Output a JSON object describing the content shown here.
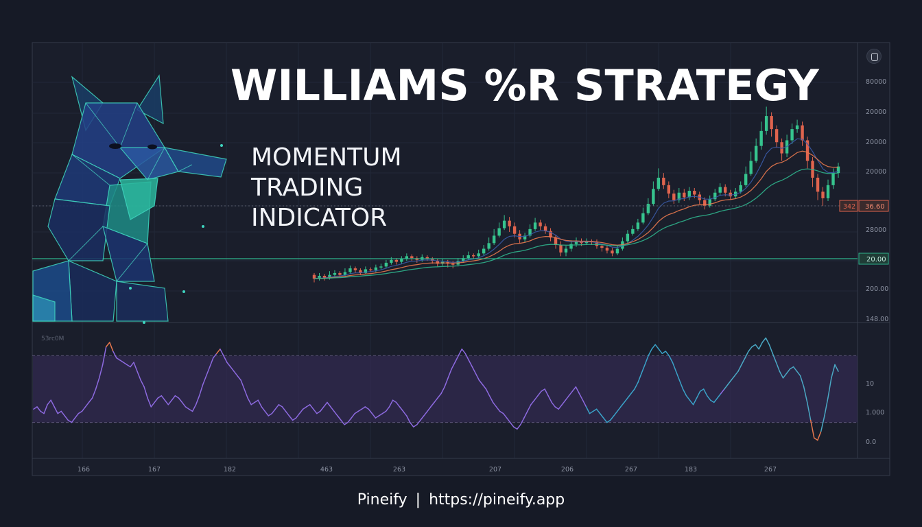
{
  "title": "WILLIAMS %R STRATEGY",
  "subtitle_lines": [
    "MOMENTUM",
    "TRADING",
    "INDICATOR"
  ],
  "footer": {
    "brand": "Pineify",
    "separator": "|",
    "url": "https://pineify.app"
  },
  "colors": {
    "bg": "#161a26",
    "panel": "#1a1e2b",
    "up": "#36c48e",
    "down": "#e0644e",
    "ema_fast": "#e8784e",
    "ema_slow": "#2fb38c",
    "ema_trend": "#3a5ba8",
    "osc": "#8d6ae0",
    "osc_band": "#3a2e5c",
    "teal_line": "#2fb38c",
    "red_line": "#e0644e"
  },
  "chart_data": [
    {
      "type": "candlestick",
      "panel": "price",
      "price_axis_ticks": [
        "80000",
        "20000",
        "20000",
        "20000",
        "28000",
        "200.00",
        "148.00"
      ],
      "price_scale_note": "tick labels are printed as shown; positions approximate",
      "level_markers": [
        {
          "label_left": "342",
          "label_right": "36.60",
          "color": "#e0644e"
        },
        {
          "label": "20.00",
          "color": "#2fb38c"
        }
      ],
      "x_ticks": [
        "166",
        "167",
        "182",
        "463",
        "263",
        "207",
        "206",
        "267",
        "183",
        "267"
      ],
      "ylim": [
        148,
        380
      ],
      "candles": [
        [
          196,
          192,
          198,
          188
        ],
        [
          192,
          195,
          198,
          190
        ],
        [
          195,
          193,
          197,
          190
        ],
        [
          193,
          196,
          200,
          191
        ],
        [
          196,
          198,
          201,
          194
        ],
        [
          198,
          196,
          200,
          194
        ],
        [
          196,
          199,
          203,
          195
        ],
        [
          199,
          203,
          206,
          197
        ],
        [
          203,
          201,
          205,
          198
        ],
        [
          201,
          198,
          203,
          196
        ],
        [
          198,
          202,
          205,
          197
        ],
        [
          202,
          201,
          204,
          199
        ],
        [
          201,
          204,
          207,
          199
        ],
        [
          204,
          205,
          208,
          202
        ],
        [
          205,
          209,
          212,
          203
        ],
        [
          209,
          212,
          215,
          207
        ],
        [
          212,
          210,
          214,
          207
        ],
        [
          210,
          213,
          216,
          208
        ],
        [
          213,
          216,
          219,
          211
        ],
        [
          216,
          214,
          218,
          211
        ],
        [
          214,
          212,
          216,
          209
        ],
        [
          212,
          215,
          218,
          210
        ],
        [
          215,
          213,
          217,
          211
        ],
        [
          213,
          211,
          215,
          208
        ],
        [
          211,
          208,
          213,
          205
        ],
        [
          208,
          210,
          213,
          206
        ],
        [
          210,
          208,
          212,
          204
        ],
        [
          208,
          207,
          211,
          203
        ],
        [
          207,
          211,
          214,
          205
        ],
        [
          211,
          214,
          217,
          209
        ],
        [
          214,
          217,
          221,
          212
        ],
        [
          217,
          216,
          219,
          213
        ],
        [
          216,
          219,
          223,
          214
        ],
        [
          219,
          224,
          228,
          217
        ],
        [
          224,
          230,
          236,
          222
        ],
        [
          230,
          238,
          245,
          228
        ],
        [
          238,
          246,
          252,
          236
        ],
        [
          246,
          254,
          260,
          244
        ],
        [
          254,
          248,
          258,
          242
        ],
        [
          248,
          240,
          252,
          236
        ],
        [
          240,
          234,
          244,
          230
        ],
        [
          234,
          238,
          241,
          231
        ],
        [
          238,
          245,
          250,
          236
        ],
        [
          245,
          252,
          257,
          243
        ],
        [
          252,
          248,
          255,
          244
        ],
        [
          248,
          243,
          251,
          240
        ],
        [
          243,
          236,
          246,
          232
        ],
        [
          236,
          228,
          239,
          224
        ],
        [
          228,
          220,
          232,
          216
        ],
        [
          220,
          224,
          227,
          216
        ],
        [
          224,
          229,
          233,
          221
        ],
        [
          229,
          232,
          236,
          226
        ],
        [
          232,
          230,
          235,
          227
        ],
        [
          230,
          232,
          235,
          228
        ],
        [
          232,
          231,
          234,
          228
        ],
        [
          231,
          227,
          234,
          224
        ],
        [
          227,
          225,
          229,
          221
        ],
        [
          225,
          222,
          228,
          219
        ],
        [
          222,
          219,
          225,
          216
        ],
        [
          219,
          224,
          227,
          217
        ],
        [
          224,
          232,
          236,
          222
        ],
        [
          232,
          240,
          244,
          230
        ],
        [
          240,
          245,
          249,
          238
        ],
        [
          245,
          252,
          256,
          243
        ],
        [
          252,
          262,
          268,
          250
        ],
        [
          262,
          272,
          278,
          260
        ],
        [
          272,
          288,
          296,
          270
        ],
        [
          288,
          300,
          310,
          286
        ],
        [
          300,
          292,
          305,
          288
        ],
        [
          292,
          283,
          296,
          278
        ],
        [
          283,
          276,
          287,
          272
        ],
        [
          276,
          284,
          289,
          273
        ],
        [
          284,
          279,
          288,
          275
        ],
        [
          279,
          286,
          290,
          276
        ],
        [
          286,
          282,
          289,
          278
        ],
        [
          282,
          276,
          285,
          272
        ],
        [
          276,
          270,
          279,
          266
        ],
        [
          270,
          277,
          281,
          268
        ],
        [
          277,
          284,
          288,
          275
        ],
        [
          284,
          290,
          294,
          281
        ],
        [
          290,
          284,
          293,
          280
        ],
        [
          284,
          280,
          287,
          277
        ],
        [
          280,
          285,
          289,
          278
        ],
        [
          285,
          292,
          296,
          283
        ],
        [
          292,
          304,
          312,
          290
        ],
        [
          304,
          318,
          328,
          302
        ],
        [
          318,
          334,
          342,
          316
        ],
        [
          334,
          350,
          360,
          330
        ],
        [
          350,
          366,
          376,
          346
        ],
        [
          366,
          352,
          370,
          344
        ],
        [
          352,
          338,
          356,
          332
        ],
        [
          338,
          326,
          342,
          318
        ],
        [
          326,
          340,
          346,
          322
        ],
        [
          340,
          352,
          358,
          336
        ],
        [
          352,
          356,
          362,
          348
        ],
        [
          356,
          340,
          360,
          334
        ],
        [
          340,
          318,
          344,
          310
        ],
        [
          318,
          300,
          322,
          290
        ],
        [
          300,
          285,
          304,
          276
        ],
        [
          285,
          278,
          290,
          270
        ],
        [
          278,
          292,
          298,
          275
        ],
        [
          292,
          305,
          310,
          288
        ],
        [
          305,
          312,
          316,
          300
        ]
      ],
      "ema_fast_label": "",
      "ema_slow_label": ""
    },
    {
      "type": "line",
      "panel": "oscillator",
      "panel_label": "53rc0M",
      "yaxis_ticks": [
        "10",
        "1.000",
        "0.0"
      ],
      "upper_band": -20,
      "lower_band": -80,
      "ylim": [
        -100,
        0
      ],
      "values": [
        -68,
        -66,
        -70,
        -72,
        -64,
        -60,
        -66,
        -72,
        -70,
        -74,
        -78,
        -80,
        -76,
        -72,
        -70,
        -66,
        -62,
        -58,
        -50,
        -40,
        -28,
        -12,
        -8,
        -16,
        -22,
        -24,
        -26,
        -28,
        -30,
        -26,
        -34,
        -42,
        -48,
        -58,
        -66,
        -62,
        -58,
        -56,
        -60,
        -64,
        -60,
        -56,
        -58,
        -62,
        -66,
        -68,
        -70,
        -64,
        -56,
        -46,
        -38,
        -30,
        -22,
        -18,
        -14,
        -20,
        -26,
        -30,
        -34,
        -38,
        -42,
        -50,
        -58,
        -64,
        -62,
        -60,
        -66,
        -70,
        -74,
        -72,
        -68,
        -64,
        -66,
        -70,
        -74,
        -78,
        -76,
        -72,
        -68,
        -66,
        -64,
        -68,
        -72,
        -70,
        -66,
        -62,
        -66,
        -70,
        -74,
        -78,
        -82,
        -80,
        -76,
        -72,
        -70,
        -68,
        -66,
        -68,
        -72,
        -76,
        -74,
        -72,
        -70,
        -66,
        -60,
        -62,
        -66,
        -70,
        -74,
        -80,
        -84,
        -82,
        -78,
        -74,
        -70,
        -66,
        -62,
        -58,
        -54,
        -48,
        -40,
        -32,
        -26,
        -20,
        -14,
        -18,
        -24,
        -30,
        -36,
        -42,
        -46,
        -50,
        -56,
        -62,
        -66,
        -70,
        -72,
        -76,
        -80,
        -84,
        -86,
        -82,
        -76,
        -70,
        -64,
        -60,
        -56,
        -52,
        -50,
        -56,
        -62,
        -66,
        -68,
        -64,
        -60,
        -56,
        -52,
        -48,
        -54,
        -60,
        -66,
        -72,
        -70,
        -68,
        -72,
        -76,
        -80,
        -78,
        -74,
        -70,
        -66,
        -62,
        -58,
        -54,
        -50,
        -44,
        -36,
        -28,
        -20,
        -14,
        -10,
        -14,
        -18,
        -16,
        -20,
        -26,
        -34,
        -42,
        -50,
        -56,
        -60,
        -64,
        -58,
        -52,
        -50,
        -56,
        -60,
        -62,
        -58,
        -54,
        -50,
        -46,
        -42,
        -38,
        -34,
        -28,
        -22,
        -16,
        -12,
        -10,
        -14,
        -8,
        -4,
        -10,
        -18,
        -26,
        -34,
        -40,
        -36,
        -32,
        -30,
        -34,
        -38,
        -48,
        -62,
        -78,
        -94,
        -96,
        -88,
        -74,
        -58,
        -40,
        -28,
        -34
      ]
    }
  ]
}
